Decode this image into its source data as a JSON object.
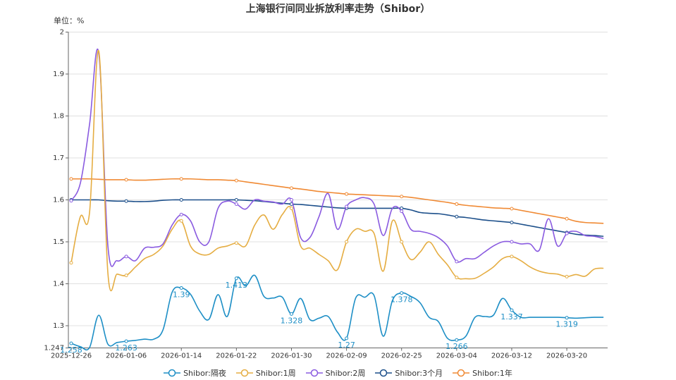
{
  "chart_data": {
    "type": "line",
    "title": "上海银行间同业拆放利率走势（Shibor）",
    "unit_label": "单位：%",
    "ylim": [
      1.247,
      2
    ],
    "yticks": [
      "1.247",
      "1.3",
      "1.4",
      "1.5",
      "1.6",
      "1.7",
      "1.8",
      "1.9",
      "2"
    ],
    "grid": true,
    "legend_position": "bottom",
    "smooth": true,
    "x": [
      "2025-12-26",
      "2025-12-29",
      "2025-12-30",
      "2025-12-31",
      "2026-01-04",
      "2026-01-05",
      "2026-01-06",
      "2026-01-07",
      "2026-01-08",
      "2026-01-09",
      "2026-01-12",
      "2026-01-13",
      "2026-01-14",
      "2026-01-15",
      "2026-01-16",
      "2026-01-19",
      "2026-01-20",
      "2026-01-21",
      "2026-01-22",
      "2026-01-23",
      "2026-01-26",
      "2026-01-27",
      "2026-01-28",
      "2026-01-29",
      "2026-01-30",
      "2026-02-02",
      "2026-02-03",
      "2026-02-04",
      "2026-02-05",
      "2026-02-06",
      "2026-02-09",
      "2026-02-10",
      "2026-02-11",
      "2026-02-12",
      "2026-02-13",
      "2026-02-24",
      "2026-02-25",
      "2026-02-26",
      "2026-02-27",
      "2026-02-28",
      "2026-03-02",
      "2026-03-03",
      "2026-03-04",
      "2026-03-05",
      "2026-03-06",
      "2026-03-09",
      "2026-03-10",
      "2026-03-11",
      "2026-03-12",
      "2026-03-13",
      "2026-03-16",
      "2026-03-17",
      "2026-03-18",
      "2026-03-19",
      "2026-03-20",
      "2026-03-23",
      "2026-03-24",
      "2026-03-25",
      "2026-03-26"
    ],
    "xtick_labels": [
      "2025-12-26",
      "2026-01-06",
      "2026-01-14",
      "2026-01-22",
      "2026-01-30",
      "2026-02-09",
      "2026-02-25",
      "2026-03-04",
      "2026-03-12",
      "2026-03-20"
    ],
    "series": [
      {
        "name": "Shibor:隔夜",
        "color": "#1e8fc6",
        "labeled": true,
        "values": [
          1.258,
          1.25,
          1.248,
          1.325,
          1.256,
          1.26,
          1.263,
          1.265,
          1.268,
          1.268,
          1.29,
          1.38,
          1.39,
          1.375,
          1.335,
          1.315,
          1.374,
          1.322,
          1.413,
          1.395,
          1.42,
          1.37,
          1.366,
          1.368,
          1.328,
          1.365,
          1.315,
          1.318,
          1.322,
          1.285,
          1.27,
          1.366,
          1.368,
          1.372,
          1.275,
          1.36,
          1.378,
          1.37,
          1.355,
          1.32,
          1.31,
          1.27,
          1.266,
          1.275,
          1.32,
          1.322,
          1.325,
          1.365,
          1.337,
          1.32,
          1.32,
          1.32,
          1.32,
          1.32,
          1.319,
          1.318,
          1.319,
          1.32,
          1.32
        ]
      },
      {
        "name": "Shibor:1周",
        "color": "#e5ad42",
        "values": [
          1.45,
          1.56,
          1.57,
          1.955,
          1.425,
          1.423,
          1.42,
          1.44,
          1.46,
          1.47,
          1.49,
          1.53,
          1.55,
          1.49,
          1.471,
          1.47,
          1.485,
          1.49,
          1.497,
          1.49,
          1.54,
          1.564,
          1.53,
          1.565,
          1.58,
          1.49,
          1.485,
          1.47,
          1.455,
          1.433,
          1.5,
          1.53,
          1.525,
          1.52,
          1.43,
          1.55,
          1.5,
          1.458,
          1.475,
          1.5,
          1.47,
          1.445,
          1.415,
          1.412,
          1.413,
          1.425,
          1.44,
          1.46,
          1.465,
          1.455,
          1.44,
          1.43,
          1.425,
          1.423,
          1.417,
          1.422,
          1.418,
          1.435,
          1.437
        ]
      },
      {
        "name": "Shibor:2周",
        "color": "#8a5be0",
        "values": [
          1.598,
          1.64,
          1.78,
          1.95,
          1.49,
          1.455,
          1.465,
          1.455,
          1.485,
          1.487,
          1.495,
          1.54,
          1.565,
          1.55,
          1.5,
          1.5,
          1.58,
          1.597,
          1.59,
          1.578,
          1.6,
          1.597,
          1.595,
          1.59,
          1.6,
          1.51,
          1.51,
          1.56,
          1.615,
          1.53,
          1.584,
          1.6,
          1.605,
          1.59,
          1.515,
          1.58,
          1.573,
          1.53,
          1.525,
          1.52,
          1.51,
          1.49,
          1.453,
          1.46,
          1.46,
          1.475,
          1.49,
          1.5,
          1.5,
          1.495,
          1.495,
          1.48,
          1.555,
          1.49,
          1.52,
          1.525,
          1.515,
          1.513,
          1.508
        ]
      },
      {
        "name": "Shibor:3个月",
        "color": "#1c4f8a",
        "values": [
          1.6,
          1.6,
          1.6,
          1.6,
          1.598,
          1.597,
          1.597,
          1.596,
          1.596,
          1.597,
          1.599,
          1.6,
          1.6,
          1.6,
          1.6,
          1.6,
          1.6,
          1.6,
          1.6,
          1.599,
          1.598,
          1.596,
          1.594,
          1.592,
          1.59,
          1.589,
          1.587,
          1.585,
          1.583,
          1.581,
          1.58,
          1.58,
          1.58,
          1.58,
          1.58,
          1.58,
          1.58,
          1.576,
          1.57,
          1.568,
          1.567,
          1.564,
          1.56,
          1.558,
          1.555,
          1.552,
          1.55,
          1.548,
          1.546,
          1.542,
          1.538,
          1.534,
          1.53,
          1.526,
          1.522,
          1.518,
          1.516,
          1.515,
          1.513
        ]
      },
      {
        "name": "Shibor:1年",
        "color": "#f08a34",
        "values": [
          1.65,
          1.65,
          1.65,
          1.649,
          1.648,
          1.648,
          1.648,
          1.647,
          1.647,
          1.648,
          1.649,
          1.65,
          1.65,
          1.65,
          1.649,
          1.648,
          1.648,
          1.647,
          1.646,
          1.643,
          1.64,
          1.637,
          1.634,
          1.631,
          1.628,
          1.626,
          1.623,
          1.62,
          1.618,
          1.616,
          1.614,
          1.613,
          1.612,
          1.611,
          1.61,
          1.609,
          1.608,
          1.606,
          1.603,
          1.6,
          1.597,
          1.594,
          1.59,
          1.587,
          1.585,
          1.583,
          1.581,
          1.58,
          1.579,
          1.575,
          1.571,
          1.567,
          1.563,
          1.559,
          1.555,
          1.549,
          1.546,
          1.545,
          1.544
        ]
      }
    ]
  }
}
